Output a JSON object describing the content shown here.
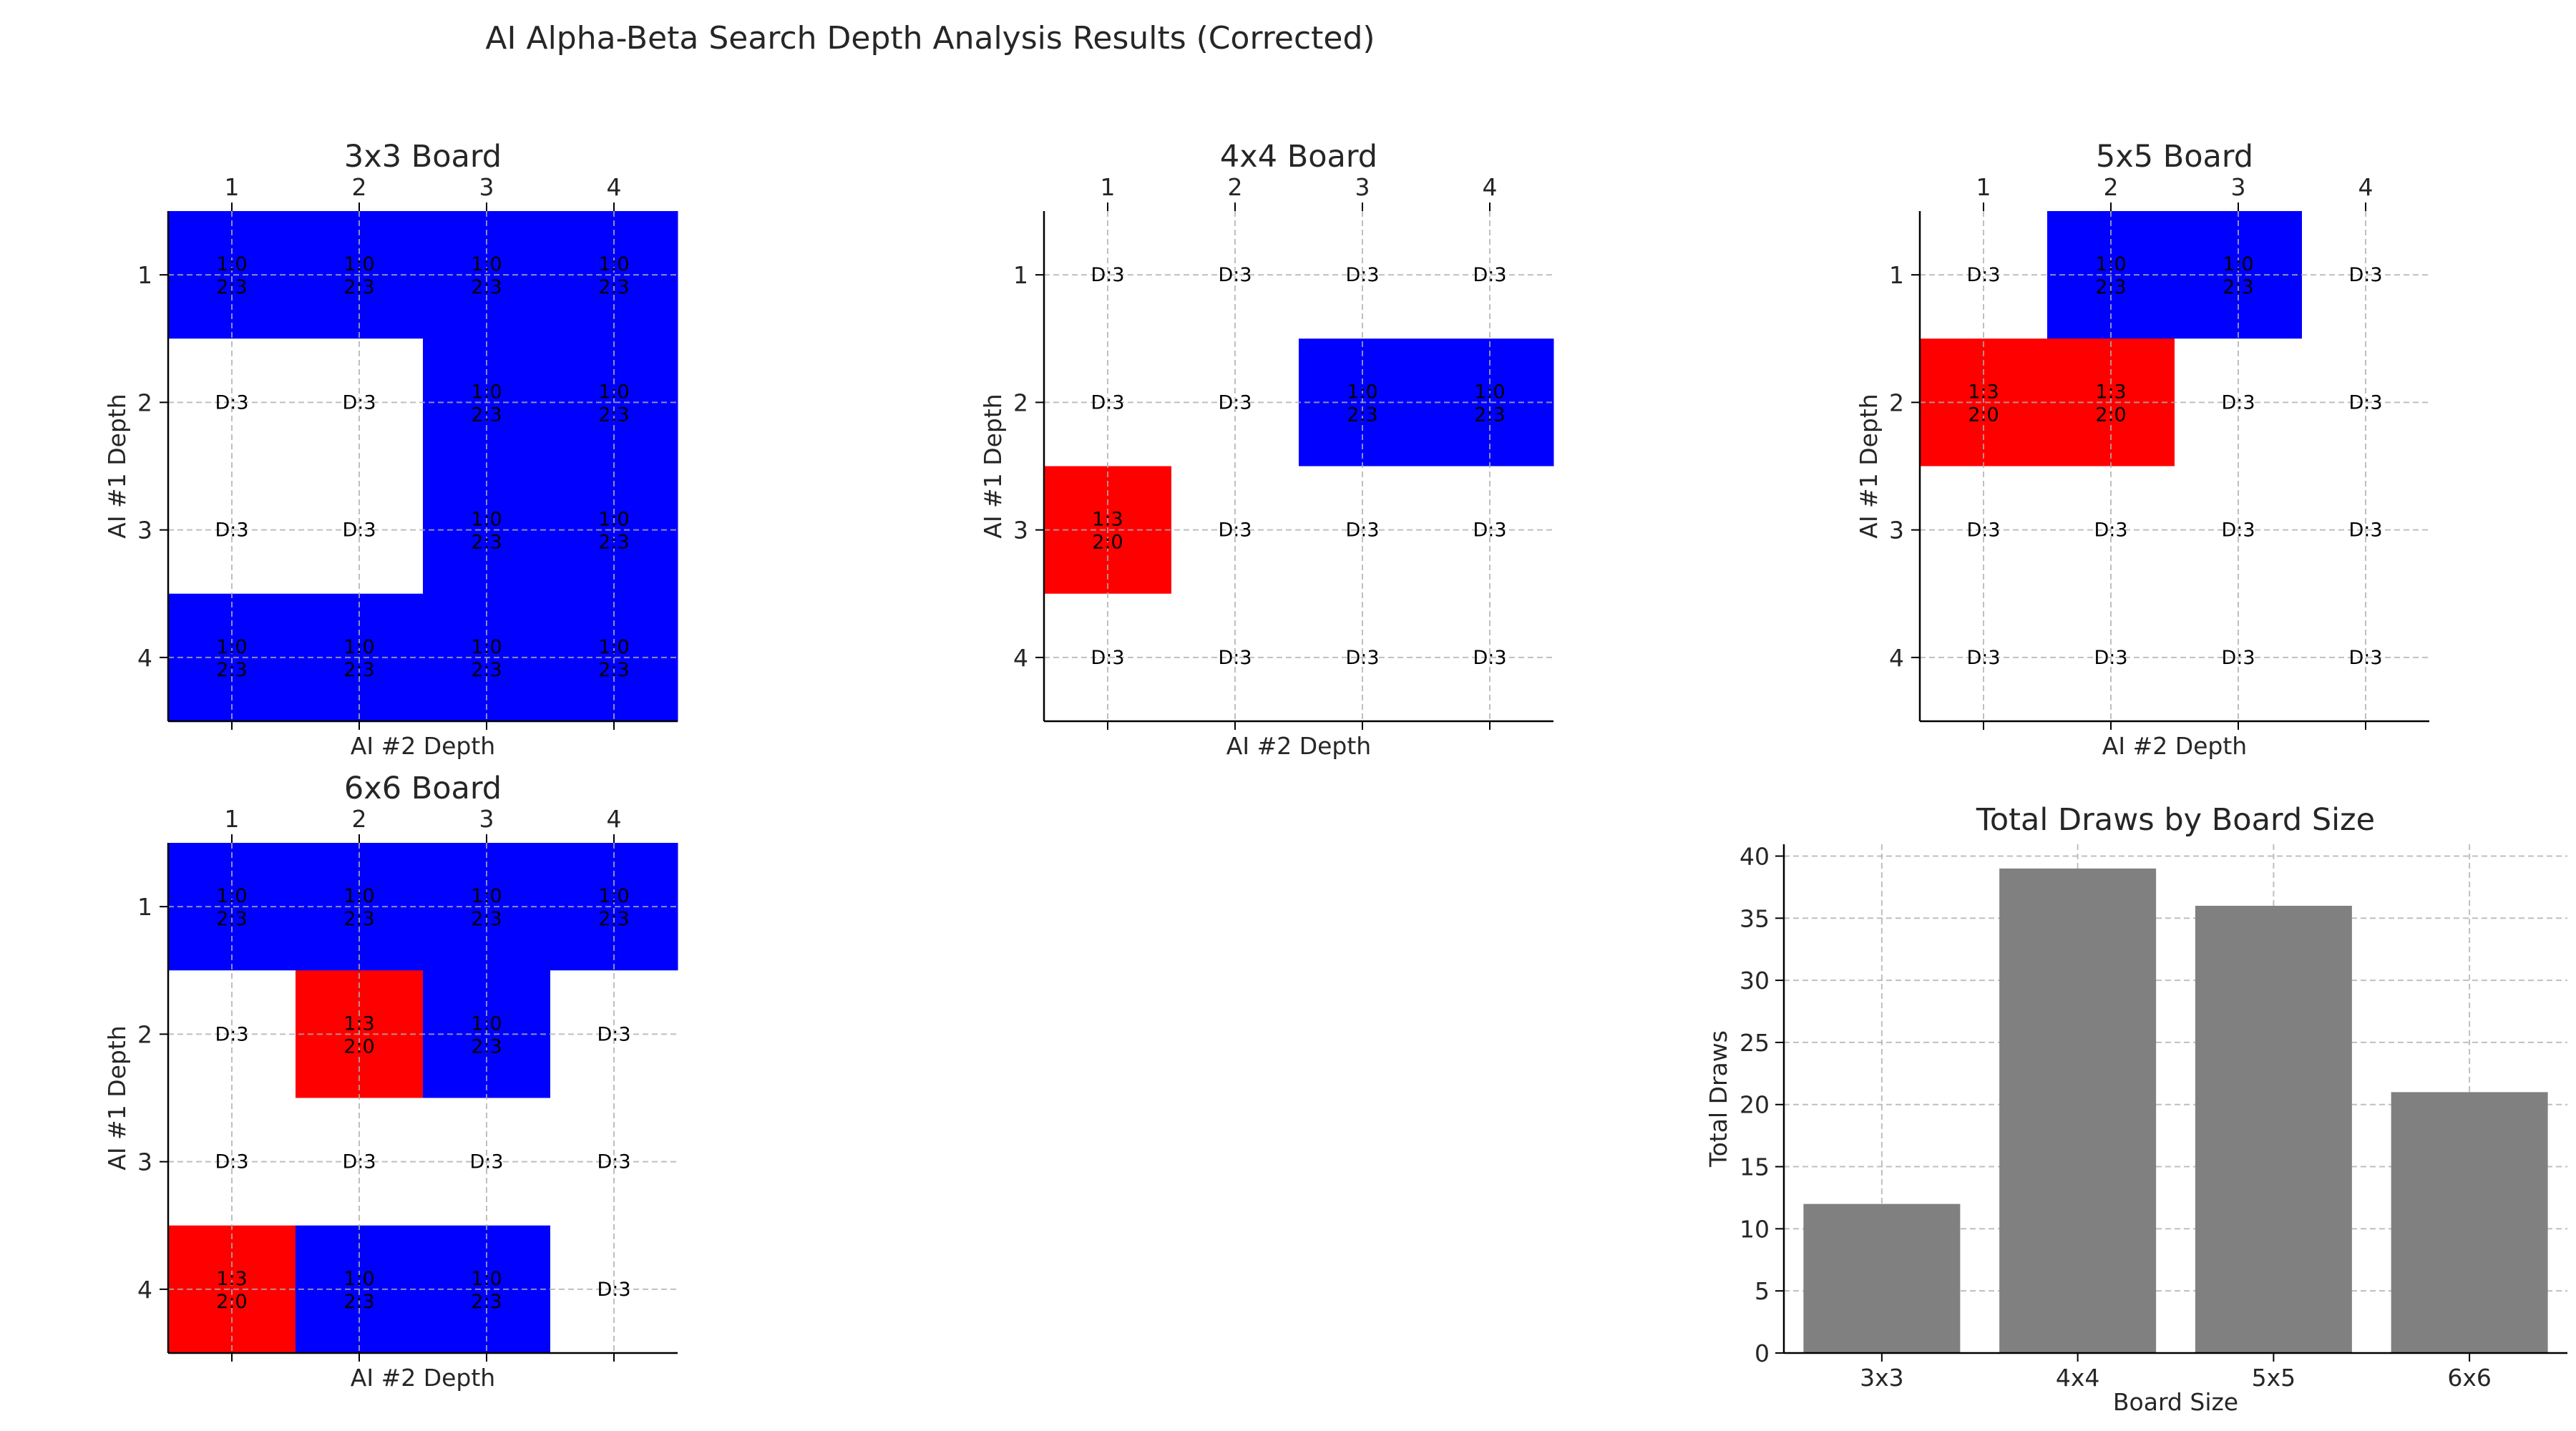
{
  "figure": {
    "title": "AI Alpha-Beta Search Depth Analysis Results (Corrected)"
  },
  "colors": {
    "ai1_win": "#0000ff",
    "ai2_win": "#ff0000",
    "draw": "#ffffff",
    "bar": "#808080",
    "grid": "#b0b0b0",
    "axis": "#000000"
  },
  "chart_data": [
    {
      "type": "heatmap",
      "title": "3x3 Board",
      "xlabel": "AI #2 Depth",
      "ylabel": "AI #1 Depth",
      "x_ticks": [
        "1",
        "2",
        "3",
        "4"
      ],
      "y_ticks": [
        "1",
        "2",
        "3",
        "4"
      ],
      "x_tick_position": "top",
      "grid": true,
      "cells": [
        [
          {
            "winner": "ai1",
            "lines": [
              "1:0",
              "2:3"
            ]
          },
          {
            "winner": "ai1",
            "lines": [
              "1:0",
              "2:3"
            ]
          },
          {
            "winner": "ai1",
            "lines": [
              "1:0",
              "2:3"
            ]
          },
          {
            "winner": "ai1",
            "lines": [
              "1:0",
              "2:3"
            ]
          }
        ],
        [
          {
            "winner": "draw",
            "lines": [
              "D:3"
            ]
          },
          {
            "winner": "draw",
            "lines": [
              "D:3"
            ]
          },
          {
            "winner": "ai1",
            "lines": [
              "1:0",
              "2:3"
            ]
          },
          {
            "winner": "ai1",
            "lines": [
              "1:0",
              "2:3"
            ]
          }
        ],
        [
          {
            "winner": "draw",
            "lines": [
              "D:3"
            ]
          },
          {
            "winner": "draw",
            "lines": [
              "D:3"
            ]
          },
          {
            "winner": "ai1",
            "lines": [
              "1:0",
              "2:3"
            ]
          },
          {
            "winner": "ai1",
            "lines": [
              "1:0",
              "2:3"
            ]
          }
        ],
        [
          {
            "winner": "ai1",
            "lines": [
              "1:0",
              "2:3"
            ]
          },
          {
            "winner": "ai1",
            "lines": [
              "1:0",
              "2:3"
            ]
          },
          {
            "winner": "ai1",
            "lines": [
              "1:0",
              "2:3"
            ]
          },
          {
            "winner": "ai1",
            "lines": [
              "1:0",
              "2:3"
            ]
          }
        ]
      ]
    },
    {
      "type": "heatmap",
      "title": "4x4 Board",
      "xlabel": "AI #2 Depth",
      "ylabel": "AI #1 Depth",
      "x_ticks": [
        "1",
        "2",
        "3",
        "4"
      ],
      "y_ticks": [
        "1",
        "2",
        "3",
        "4"
      ],
      "x_tick_position": "top",
      "grid": true,
      "cells": [
        [
          {
            "winner": "draw",
            "lines": [
              "D:3"
            ]
          },
          {
            "winner": "draw",
            "lines": [
              "D:3"
            ]
          },
          {
            "winner": "draw",
            "lines": [
              "D:3"
            ]
          },
          {
            "winner": "draw",
            "lines": [
              "D:3"
            ]
          }
        ],
        [
          {
            "winner": "draw",
            "lines": [
              "D:3"
            ]
          },
          {
            "winner": "draw",
            "lines": [
              "D:3"
            ]
          },
          {
            "winner": "ai1",
            "lines": [
              "1:0",
              "2:3"
            ]
          },
          {
            "winner": "ai1",
            "lines": [
              "1:0",
              "2:3"
            ]
          }
        ],
        [
          {
            "winner": "ai2",
            "lines": [
              "1:3",
              "2:0"
            ]
          },
          {
            "winner": "draw",
            "lines": [
              "D:3"
            ]
          },
          {
            "winner": "draw",
            "lines": [
              "D:3"
            ]
          },
          {
            "winner": "draw",
            "lines": [
              "D:3"
            ]
          }
        ],
        [
          {
            "winner": "draw",
            "lines": [
              "D:3"
            ]
          },
          {
            "winner": "draw",
            "lines": [
              "D:3"
            ]
          },
          {
            "winner": "draw",
            "lines": [
              "D:3"
            ]
          },
          {
            "winner": "draw",
            "lines": [
              "D:3"
            ]
          }
        ]
      ]
    },
    {
      "type": "heatmap",
      "title": "5x5 Board",
      "xlabel": "AI #2 Depth",
      "ylabel": "AI #1 Depth",
      "x_ticks": [
        "1",
        "2",
        "3",
        "4"
      ],
      "y_ticks": [
        "1",
        "2",
        "3",
        "4"
      ],
      "x_tick_position": "top",
      "grid": true,
      "cells": [
        [
          {
            "winner": "draw",
            "lines": [
              "D:3"
            ]
          },
          {
            "winner": "ai1",
            "lines": [
              "1:0",
              "2:3"
            ]
          },
          {
            "winner": "ai1",
            "lines": [
              "1:0",
              "2:3"
            ]
          },
          {
            "winner": "draw",
            "lines": [
              "D:3"
            ]
          }
        ],
        [
          {
            "winner": "ai2",
            "lines": [
              "1:3",
              "2:0"
            ]
          },
          {
            "winner": "ai2",
            "lines": [
              "1:3",
              "2:0"
            ]
          },
          {
            "winner": "draw",
            "lines": [
              "D:3"
            ]
          },
          {
            "winner": "draw",
            "lines": [
              "D:3"
            ]
          }
        ],
        [
          {
            "winner": "draw",
            "lines": [
              "D:3"
            ]
          },
          {
            "winner": "draw",
            "lines": [
              "D:3"
            ]
          },
          {
            "winner": "draw",
            "lines": [
              "D:3"
            ]
          },
          {
            "winner": "draw",
            "lines": [
              "D:3"
            ]
          }
        ],
        [
          {
            "winner": "draw",
            "lines": [
              "D:3"
            ]
          },
          {
            "winner": "draw",
            "lines": [
              "D:3"
            ]
          },
          {
            "winner": "draw",
            "lines": [
              "D:3"
            ]
          },
          {
            "winner": "draw",
            "lines": [
              "D:3"
            ]
          }
        ]
      ]
    },
    {
      "type": "heatmap",
      "title": "6x6 Board",
      "xlabel": "AI #2 Depth",
      "ylabel": "AI #1 Depth",
      "x_ticks": [
        "1",
        "2",
        "3",
        "4"
      ],
      "y_ticks": [
        "1",
        "2",
        "3",
        "4"
      ],
      "x_tick_position": "top",
      "grid": true,
      "cells": [
        [
          {
            "winner": "ai1",
            "lines": [
              "1:0",
              "2:3"
            ]
          },
          {
            "winner": "ai1",
            "lines": [
              "1:0",
              "2:3"
            ]
          },
          {
            "winner": "ai1",
            "lines": [
              "1:0",
              "2:3"
            ]
          },
          {
            "winner": "ai1",
            "lines": [
              "1:0",
              "2:3"
            ]
          }
        ],
        [
          {
            "winner": "draw",
            "lines": [
              "D:3"
            ]
          },
          {
            "winner": "ai2",
            "lines": [
              "1:3",
              "2:0"
            ]
          },
          {
            "winner": "ai1",
            "lines": [
              "1:0",
              "2:3"
            ]
          },
          {
            "winner": "draw",
            "lines": [
              "D:3"
            ]
          }
        ],
        [
          {
            "winner": "draw",
            "lines": [
              "D:3"
            ]
          },
          {
            "winner": "draw",
            "lines": [
              "D:3"
            ]
          },
          {
            "winner": "draw",
            "lines": [
              "D:3"
            ]
          },
          {
            "winner": "draw",
            "lines": [
              "D:3"
            ]
          }
        ],
        [
          {
            "winner": "ai2",
            "lines": [
              "1:3",
              "2:0"
            ]
          },
          {
            "winner": "ai1",
            "lines": [
              "1:0",
              "2:3"
            ]
          },
          {
            "winner": "ai1",
            "lines": [
              "1:0",
              "2:3"
            ]
          },
          {
            "winner": "draw",
            "lines": [
              "D:3"
            ]
          }
        ]
      ]
    },
    {
      "type": "bar",
      "title": "Total Draws by Board Size",
      "xlabel": "Board Size",
      "ylabel": "Total Draws",
      "categories": [
        "3x3",
        "4x4",
        "5x5",
        "6x6"
      ],
      "values": [
        12,
        39,
        36,
        21
      ],
      "ylim": [
        0,
        40.95
      ],
      "y_ticks": [
        0,
        5,
        10,
        15,
        20,
        25,
        30,
        35,
        40
      ],
      "grid": true
    }
  ]
}
